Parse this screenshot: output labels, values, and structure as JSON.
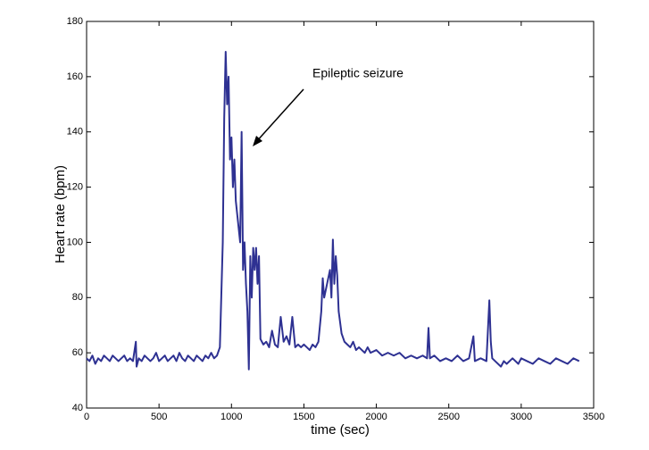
{
  "chart_data": {
    "type": "line",
    "annotation": "Epileptic seizure",
    "xlabel": "time (sec)",
    "ylabel": "Heart rate (bpm)",
    "xlim": [
      0,
      3500
    ],
    "ylim": [
      40,
      180
    ],
    "xticks": [
      0,
      500,
      1000,
      1500,
      2000,
      2500,
      3000,
      3500
    ],
    "yticks": [
      40,
      60,
      80,
      100,
      120,
      140,
      160,
      180
    ],
    "grid": false,
    "series": [
      {
        "color": "#2e3192",
        "x": [
          0,
          20,
          40,
          60,
          80,
          100,
          120,
          140,
          160,
          180,
          200,
          220,
          240,
          260,
          280,
          300,
          320,
          340,
          345,
          360,
          380,
          400,
          420,
          440,
          460,
          480,
          500,
          520,
          540,
          560,
          580,
          600,
          620,
          640,
          660,
          680,
          700,
          720,
          740,
          760,
          780,
          800,
          820,
          840,
          860,
          880,
          900,
          920,
          940,
          950,
          960,
          970,
          980,
          990,
          1000,
          1010,
          1020,
          1030,
          1040,
          1050,
          1060,
          1070,
          1080,
          1090,
          1100,
          1110,
          1120,
          1130,
          1140,
          1150,
          1160,
          1170,
          1180,
          1190,
          1200,
          1220,
          1240,
          1260,
          1280,
          1300,
          1320,
          1340,
          1360,
          1380,
          1400,
          1420,
          1440,
          1460,
          1480,
          1500,
          1520,
          1540,
          1560,
          1580,
          1600,
          1620,
          1630,
          1640,
          1660,
          1680,
          1690,
          1700,
          1710,
          1720,
          1730,
          1740,
          1760,
          1780,
          1800,
          1820,
          1840,
          1860,
          1880,
          1900,
          1920,
          1940,
          1960,
          2000,
          2040,
          2080,
          2120,
          2160,
          2200,
          2240,
          2280,
          2320,
          2350,
          2360,
          2370,
          2400,
          2440,
          2480,
          2520,
          2560,
          2600,
          2640,
          2670,
          2680,
          2720,
          2760,
          2780,
          2790,
          2800,
          2820,
          2860,
          2880,
          2900,
          2940,
          2980,
          3000,
          3040,
          3080,
          3120,
          3160,
          3200,
          3240,
          3280,
          3320,
          3360,
          3400
        ],
        "values": [
          58,
          57,
          59,
          56,
          58,
          57,
          59,
          58,
          57,
          59,
          58,
          57,
          58,
          59,
          57,
          58,
          57,
          64,
          55,
          58,
          57,
          59,
          58,
          57,
          58,
          60,
          57,
          58,
          59,
          57,
          58,
          59,
          57,
          60,
          58,
          57,
          59,
          58,
          57,
          59,
          58,
          57,
          59,
          58,
          60,
          58,
          59,
          62,
          100,
          145,
          169,
          150,
          160,
          130,
          138,
          120,
          130,
          115,
          110,
          105,
          100,
          140,
          90,
          100,
          85,
          75,
          54,
          95,
          80,
          98,
          90,
          98,
          85,
          95,
          65,
          63,
          64,
          62,
          68,
          63,
          62,
          73,
          64,
          66,
          63,
          73,
          62,
          63,
          62,
          63,
          62,
          61,
          63,
          62,
          64,
          75,
          87,
          80,
          85,
          90,
          80,
          101,
          85,
          95,
          88,
          75,
          67,
          64,
          63,
          62,
          64,
          61,
          62,
          61,
          60,
          62,
          60,
          61,
          59,
          60,
          59,
          60,
          58,
          59,
          58,
          59,
          58,
          69,
          58,
          59,
          57,
          58,
          57,
          59,
          57,
          58,
          66,
          57,
          58,
          57,
          79,
          64,
          58,
          57,
          55,
          57,
          56,
          58,
          56,
          58,
          57,
          56,
          58,
          57,
          56,
          58,
          57,
          56,
          58,
          57
        ]
      }
    ]
  }
}
